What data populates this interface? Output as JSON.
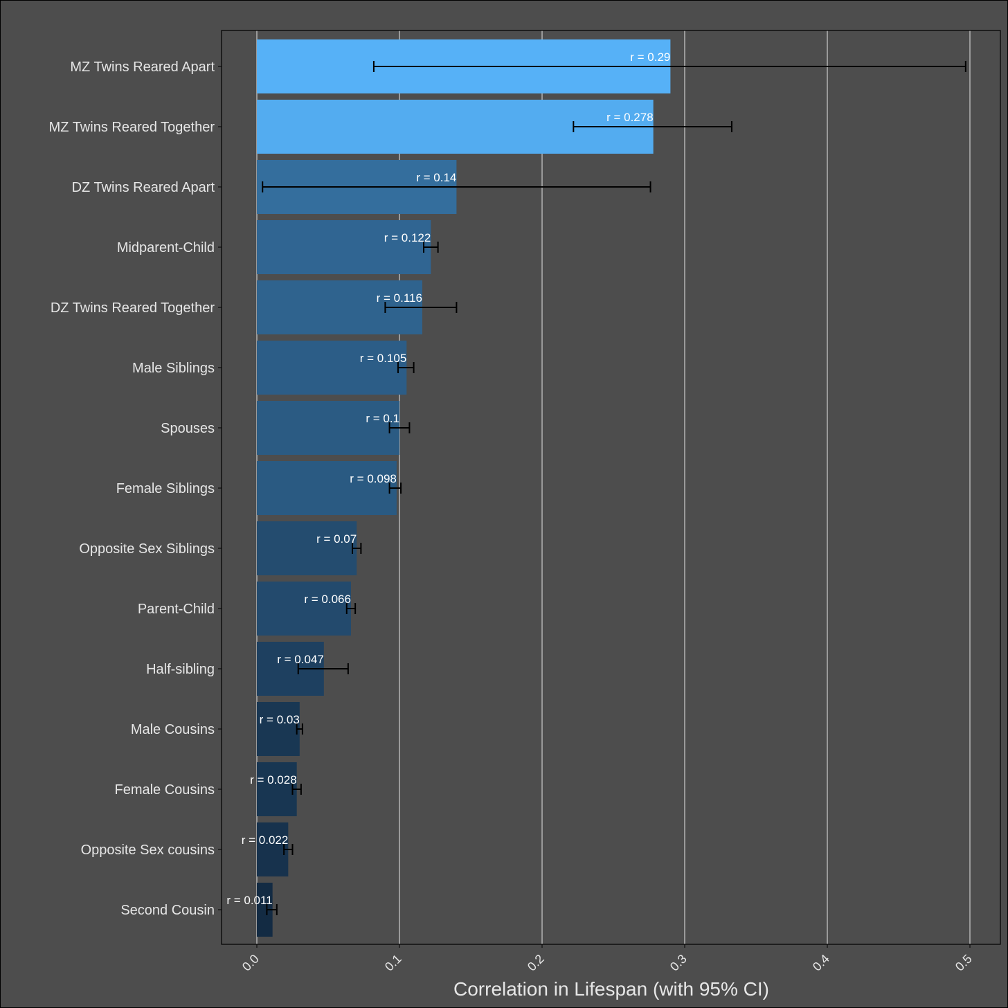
{
  "chart_data": {
    "type": "bar",
    "orientation": "horizontal",
    "xlabel": "Correlation in Lifespan (with 95% CI)",
    "xlim": [
      -0.025,
      0.52
    ],
    "xticks": [
      0.0,
      0.1,
      0.2,
      0.3,
      0.4,
      0.5
    ],
    "xtick_labels": [
      "0.0",
      "0.1",
      "0.2",
      "0.3",
      "0.4",
      "0.5"
    ],
    "grid": true,
    "label_prefix": "r = ",
    "categories": [
      "MZ Twins Reared Apart",
      "MZ Twins Reared Together",
      "DZ Twins Reared Apart",
      "Midparent-Child",
      "DZ Twins Reared Together",
      "Male Siblings",
      "Spouses",
      "Female Siblings",
      "Opposite Sex Siblings",
      "Parent-Child",
      "Half-sibling",
      "Male Cousins",
      "Female Cousins",
      "Opposite Sex cousins",
      "Second Cousin"
    ],
    "values": [
      0.29,
      0.278,
      0.14,
      0.122,
      0.116,
      0.105,
      0.1,
      0.098,
      0.07,
      0.066,
      0.047,
      0.03,
      0.028,
      0.022,
      0.011
    ],
    "value_labels": [
      "0.29",
      "0.278",
      "0.14",
      "0.122",
      "0.116",
      "0.105",
      "0.1",
      "0.098",
      "0.07",
      "0.066",
      "0.047",
      "0.03",
      "0.028",
      "0.022",
      "0.011"
    ],
    "ci_low": [
      0.082,
      0.222,
      0.004,
      0.117,
      0.09,
      0.099,
      0.093,
      0.093,
      0.067,
      0.063,
      0.029,
      0.028,
      0.025,
      0.019,
      0.007
    ],
    "ci_high": [
      0.497,
      0.333,
      0.276,
      0.127,
      0.14,
      0.11,
      0.107,
      0.101,
      0.073,
      0.069,
      0.064,
      0.032,
      0.031,
      0.025,
      0.014
    ],
    "colors": {
      "background": "#4d4d4d",
      "bar_high": "#56b1f7",
      "bar_low": "#132b43",
      "grid": "#b3b3b3",
      "axis_text": "#e6e6e6",
      "errorbar": "#000000",
      "border": "#000000"
    }
  }
}
